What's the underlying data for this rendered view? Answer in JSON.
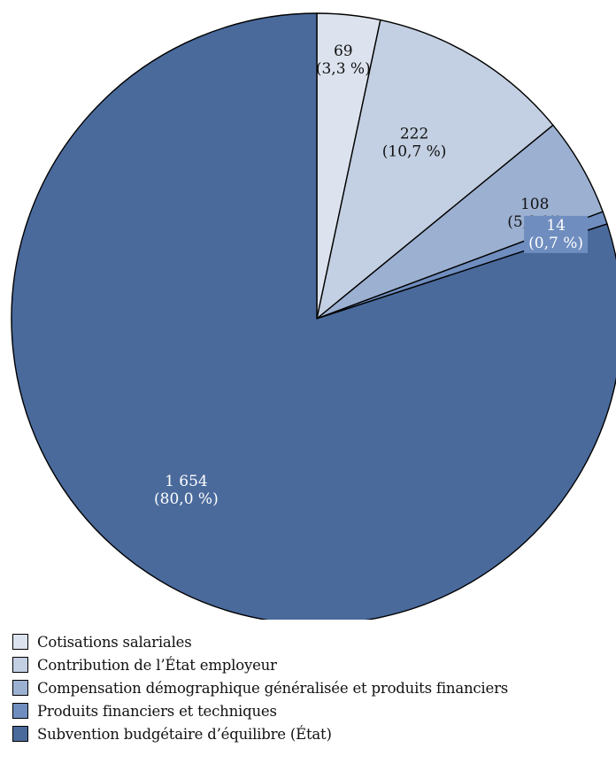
{
  "chart_data": {
    "type": "pie",
    "title": "",
    "slices": [
      {
        "name": "Cotisations salariales",
        "value": 69,
        "value_label": "69",
        "percent_label": "(3,3 %)",
        "color": "#dde3ee",
        "label_color": "#111111",
        "label_bg": ""
      },
      {
        "name": "Contribution de l’État employeur",
        "value": 222,
        "value_label": "222",
        "percent_label": "(10,7 %)",
        "color": "#c3cfe2",
        "label_color": "#111111",
        "label_bg": ""
      },
      {
        "name": "Compensation démographique généralisée et produits financiers",
        "value": 108,
        "value_label": "108",
        "percent_label": "(5,2 %)",
        "color": "#9cb0d1",
        "label_color": "#111111",
        "label_bg": ""
      },
      {
        "name": "Produits financiers et techniques",
        "value": 14,
        "value_label": "14",
        "percent_label": "(0,7 %)",
        "color": "#6f8dbf",
        "label_color": "#ffffff",
        "label_bg": "#6f8dbf"
      },
      {
        "name": "Subvention budgétaire d’équilibre (État)",
        "value": 1654,
        "value_label": "1 654",
        "percent_label": "(80,0 %)",
        "color": "#4a6a9c",
        "label_color": "#ffffff",
        "label_bg": ""
      }
    ],
    "legend_position": "bottom-left"
  }
}
